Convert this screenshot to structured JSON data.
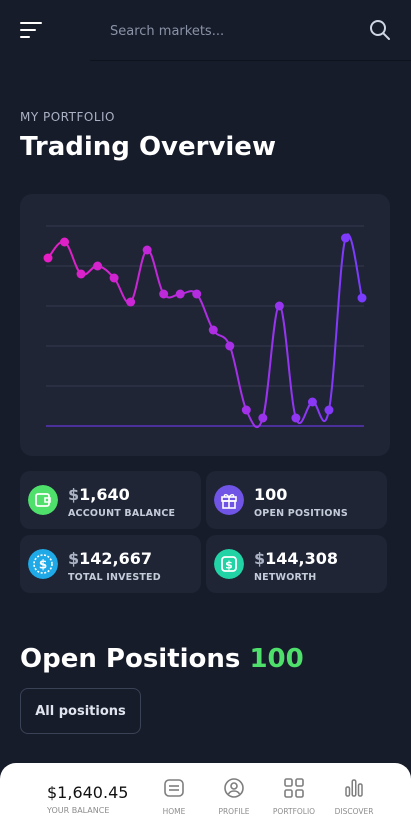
{
  "header": {
    "search_placeholder": "Search markets..."
  },
  "portfolio": {
    "eyebrow": "MY PORTFOLIO",
    "title": "Trading Overview"
  },
  "chart_data": {
    "type": "line",
    "x": [
      1,
      2,
      3,
      4,
      5,
      6,
      7,
      8,
      9,
      10,
      11,
      12,
      13,
      14,
      15,
      16,
      17,
      18,
      19,
      20
    ],
    "values": [
      42,
      46,
      38,
      40,
      37,
      31,
      44,
      33,
      33,
      33,
      24,
      20,
      4,
      2,
      30,
      2,
      6,
      4,
      47,
      32
    ],
    "ylim": [
      0,
      50
    ],
    "grid": true,
    "colors": [
      "#e61ec4",
      "#7a3cff"
    ]
  },
  "stats": [
    {
      "currency": "$",
      "value": "1,640",
      "label": "ACCOUNT BALANCE",
      "icon": "wallet-icon",
      "color": "#4ee06b"
    },
    {
      "currency": "",
      "value": "100",
      "label": "OPEN POSITIONS",
      "icon": "gift-icon",
      "color": "#6f54e6"
    },
    {
      "currency": "$",
      "value": "142,667",
      "label": "TOTAL INVESTED",
      "icon": "dollar-coin-icon",
      "color": "#1fa9e6"
    },
    {
      "currency": "$",
      "value": "144,308",
      "label": "NETWORTH",
      "icon": "dollar-square-icon",
      "color": "#22d3a6"
    }
  ],
  "positions": {
    "title": "Open Positions",
    "count": "100",
    "filter_label": "All positions"
  },
  "bottom_bar": {
    "balance": "$1,640.45",
    "balance_label": "YOUR BALANCE",
    "nav": [
      {
        "label": "HOME",
        "icon": "home-icon"
      },
      {
        "label": "PROFILE",
        "icon": "profile-icon"
      },
      {
        "label": "PORTFOLIO",
        "icon": "portfolio-icon"
      },
      {
        "label": "DISCOVER",
        "icon": "discover-icon"
      }
    ]
  }
}
